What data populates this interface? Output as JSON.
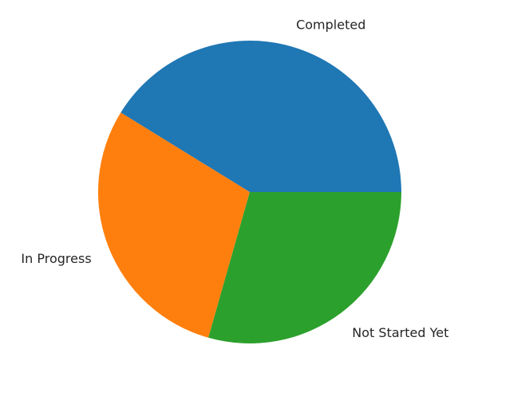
{
  "chart_data": {
    "type": "pie",
    "title": "",
    "legend": "none",
    "start_angle_deg": 0,
    "direction": "counterclockwise",
    "slices": [
      {
        "label": "Completed",
        "value": 41.2,
        "color": "#1f77b4"
      },
      {
        "label": "In Progress",
        "value": 29.4,
        "color": "#ff7f0e"
      },
      {
        "label": "Not Started Yet",
        "value": 29.4,
        "color": "#2ca02c"
      }
    ]
  }
}
